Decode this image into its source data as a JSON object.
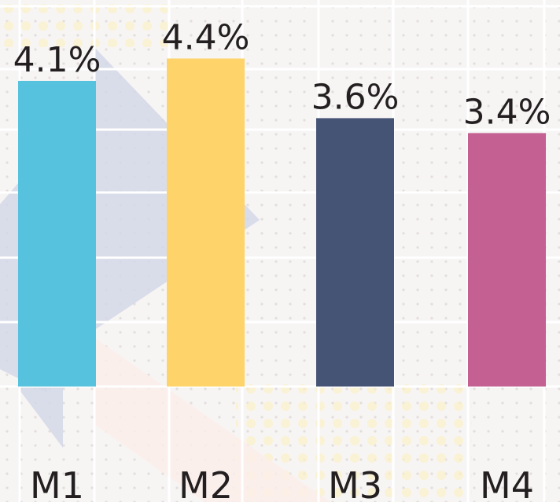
{
  "chart_data": {
    "type": "bar",
    "categories": [
      "M1",
      "M2",
      "M3",
      "M4"
    ],
    "values": [
      4.1,
      4.4,
      3.6,
      3.4
    ],
    "value_labels": [
      "4.1%",
      "4.4%",
      "3.6%",
      "3.4%"
    ],
    "colors": [
      "#57c2dd",
      "#fed46a",
      "#455474",
      "#c46092"
    ],
    "ylim": [
      0,
      4.5
    ]
  }
}
